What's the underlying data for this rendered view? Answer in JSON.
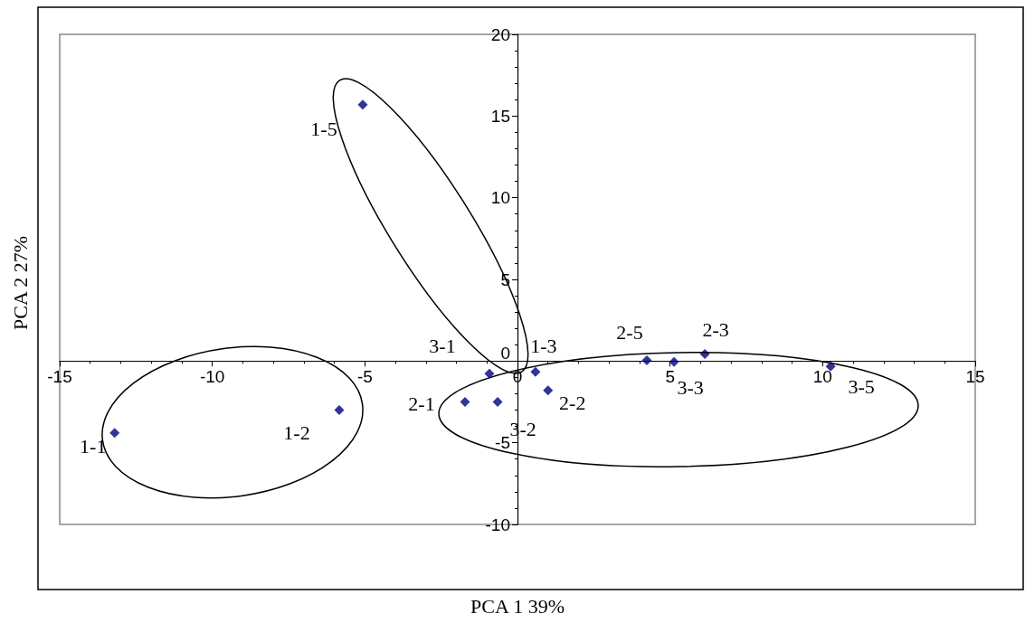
{
  "chart_data": {
    "type": "scatter",
    "xlabel": "PCA 1 39%",
    "ylabel": "PCA 2 27%",
    "x": [
      -5.07,
      -13.2,
      -5.84,
      -0.92,
      -1.72,
      -0.65,
      0.59,
      1.0,
      4.24,
      5.13,
      6.14,
      10.26
    ],
    "values": [
      15.7,
      -4.4,
      -3.0,
      -0.77,
      -2.5,
      -2.5,
      -0.66,
      -1.8,
      0.05,
      -0.05,
      0.44,
      -0.33
    ],
    "color": "#000080",
    "marker": "diamond",
    "xlim": [
      -15,
      15
    ],
    "xticks": [
      -15,
      -10,
      -5,
      0,
      5,
      10,
      15
    ],
    "ylim": [
      -10,
      20
    ],
    "yticks": [
      -10,
      -5,
      0,
      5,
      10,
      15,
      20
    ],
    "grid": false,
    "annotations": [
      {
        "text": "1-5",
        "x": -5.07,
        "y": 15.7
      },
      {
        "text": "1-1",
        "x": -13.2,
        "y": -4.4
      },
      {
        "text": "1-2",
        "x": -5.84,
        "y": -3.0
      },
      {
        "text": "3-1",
        "x": -0.92,
        "y": -0.77
      },
      {
        "text": "2-1",
        "x": -1.72,
        "y": -2.5
      },
      {
        "text": "3-2",
        "x": -0.65,
        "y": -2.5
      },
      {
        "text": "1-3",
        "x": 0.59,
        "y": -0.66
      },
      {
        "text": "2-2",
        "x": 1.0,
        "y": -1.8
      },
      {
        "text": "2-5",
        "x": 4.24,
        "y": 0.05
      },
      {
        "text": "3-3",
        "x": 5.13,
        "y": -0.05
      },
      {
        "text": "2-3",
        "x": 6.14,
        "y": 0.44
      },
      {
        "text": "3-5",
        "x": 10.26,
        "y": -0.33
      }
    ]
  }
}
